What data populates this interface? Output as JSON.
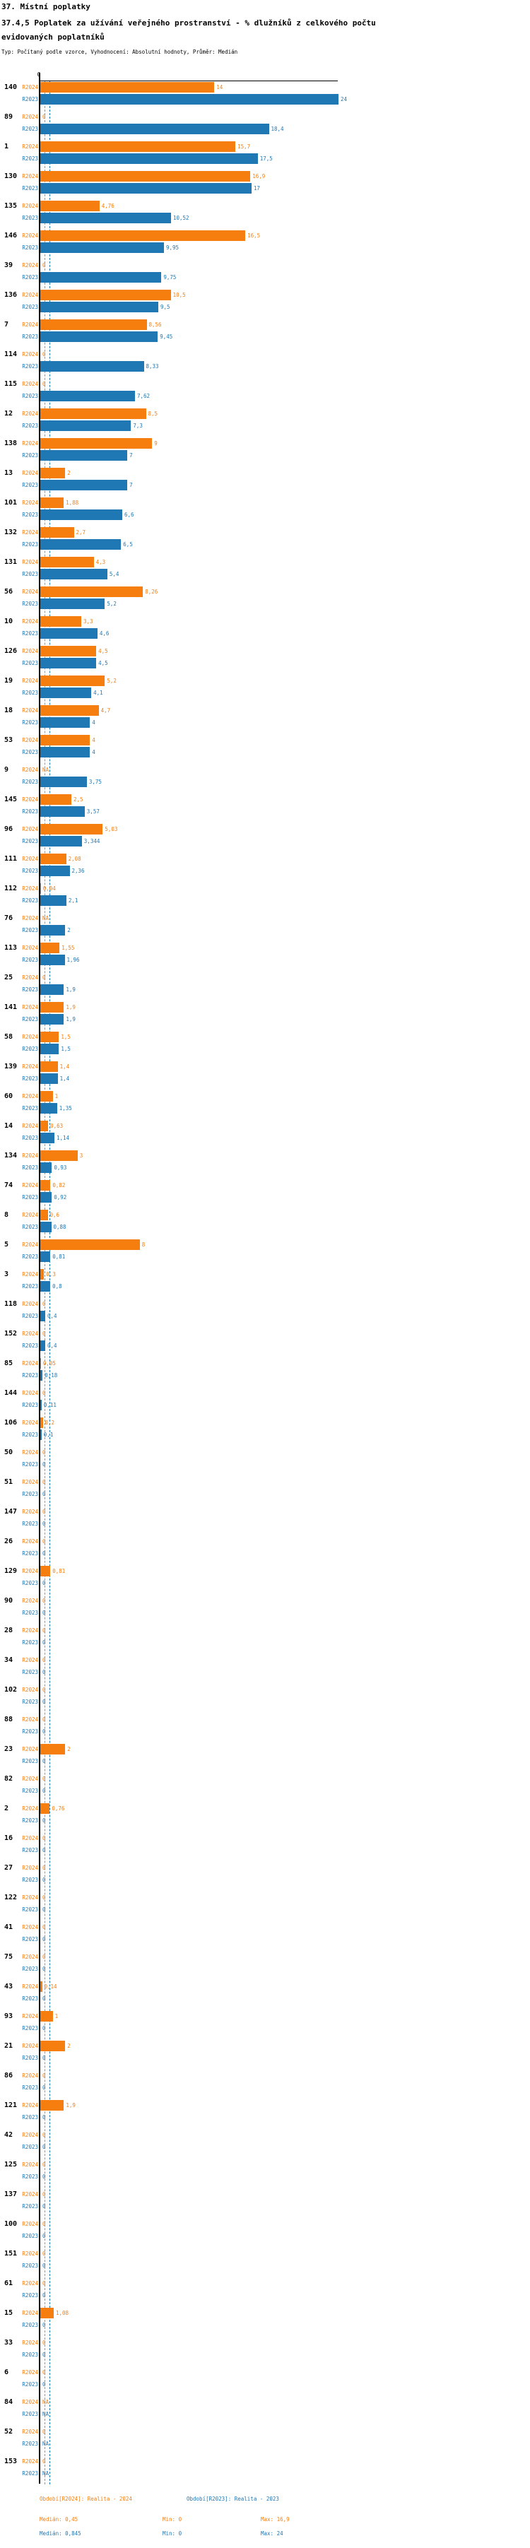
{
  "header": {
    "title": "37. Místní poplatky",
    "subtitle": "37.4,5 Poplatek za užívání veřejného prostranství - % dlužníků z celkového počtu evidovaných poplatníků",
    "meta": "Typ: Počítaný podle vzorce, Vyhodnocení: Absolutní hodnoty, Průměr: Medián"
  },
  "chart_data": {
    "type": "bar",
    "orientation": "horizontal",
    "title": "37.4,5 Poplatek za užívání veřejného prostranství - % dlužníků z celkového počtu evidovaných poplatníků",
    "xlabel": "",
    "ylabel": "",
    "unit": "%",
    "axis": {
      "zero_label": "0",
      "min": 0,
      "max": 24,
      "grid": false
    },
    "legend_position": "bottom",
    "series": [
      {
        "key": "r2024",
        "name": "R2024",
        "label": "Období[R2024]: Realita - 2024",
        "color": "#f57e0e",
        "median": 0.45,
        "min": 0,
        "max": 16.9
      },
      {
        "key": "r2023",
        "name": "R2023",
        "label": "Období[R2023]: Realita - 2023",
        "color": "#1f77b4",
        "median": 0.845,
        "min": 0,
        "max": 24
      }
    ],
    "groups": [
      {
        "id": "140",
        "r2024": "14",
        "r2023": "24"
      },
      {
        "id": "89",
        "r2024": "0",
        "r2023": "18,4"
      },
      {
        "id": "1",
        "r2024": "15,7",
        "r2023": "17,5"
      },
      {
        "id": "130",
        "r2024": "16,9",
        "r2023": "17"
      },
      {
        "id": "135",
        "r2024": "4,76",
        "r2023": "10,52"
      },
      {
        "id": "146",
        "r2024": "16,5",
        "r2023": "9,95"
      },
      {
        "id": "39",
        "r2024": "0",
        "r2023": "9,75"
      },
      {
        "id": "136",
        "r2024": "10,5",
        "r2023": "9,5"
      },
      {
        "id": "7",
        "r2024": "8,56",
        "r2023": "9,45"
      },
      {
        "id": "114",
        "r2024": "0",
        "r2023": "8,33"
      },
      {
        "id": "115",
        "r2024": "0",
        "r2023": "7,62"
      },
      {
        "id": "12",
        "r2024": "8,5",
        "r2023": "7,3"
      },
      {
        "id": "138",
        "r2024": "9",
        "r2023": "7"
      },
      {
        "id": "13",
        "r2024": "2",
        "r2023": "7"
      },
      {
        "id": "101",
        "r2024": "1,88",
        "r2023": "6,6"
      },
      {
        "id": "132",
        "r2024": "2,7",
        "r2023": "6,5"
      },
      {
        "id": "131",
        "r2024": "4,3",
        "r2023": "5,4"
      },
      {
        "id": "56",
        "r2024": "8,26",
        "r2023": "5,2"
      },
      {
        "id": "10",
        "r2024": "3,3",
        "r2023": "4,6"
      },
      {
        "id": "126",
        "r2024": "4,5",
        "r2023": "4,5"
      },
      {
        "id": "19",
        "r2024": "5,2",
        "r2023": "4,1"
      },
      {
        "id": "18",
        "r2024": "4,7",
        "r2023": "4"
      },
      {
        "id": "53",
        "r2024": "4",
        "r2023": "4"
      },
      {
        "id": "9",
        "r2024": "NA",
        "r2023": "3,75"
      },
      {
        "id": "145",
        "r2024": "2,5",
        "r2023": "3,57"
      },
      {
        "id": "96",
        "r2024": "5,03",
        "r2023": "3,344"
      },
      {
        "id": "111",
        "r2024": "2,08",
        "r2023": "2,36"
      },
      {
        "id": "112",
        "r2024": "0,04",
        "r2023": "2,1"
      },
      {
        "id": "76",
        "r2024": "NA",
        "r2023": "2"
      },
      {
        "id": "113",
        "r2024": "1,55",
        "r2023": "1,96"
      },
      {
        "id": "25",
        "r2024": "0",
        "r2023": "1,9"
      },
      {
        "id": "141",
        "r2024": "1,9",
        "r2023": "1,9"
      },
      {
        "id": "58",
        "r2024": "1,5",
        "r2023": "1,5"
      },
      {
        "id": "139",
        "r2024": "1,4",
        "r2023": "1,4"
      },
      {
        "id": "60",
        "r2024": "1",
        "r2023": "1,35"
      },
      {
        "id": "14",
        "r2024": "0,63",
        "r2023": "1,14"
      },
      {
        "id": "134",
        "r2024": "3",
        "r2023": "0,93"
      },
      {
        "id": "74",
        "r2024": "0,82",
        "r2023": "0,92"
      },
      {
        "id": "8",
        "r2024": "0,6",
        "r2023": "0,88"
      },
      {
        "id": "5",
        "r2024": "8",
        "r2023": "0,81"
      },
      {
        "id": "3",
        "r2024": "0,3",
        "r2023": "0,8"
      },
      {
        "id": "118",
        "r2024": "0",
        "r2023": "0,4"
      },
      {
        "id": "152",
        "r2024": "0",
        "r2023": "0,4"
      },
      {
        "id": "85",
        "r2024": "0,05",
        "r2023": "0,18"
      },
      {
        "id": "144",
        "r2024": "0",
        "r2023": "0,11"
      },
      {
        "id": "106",
        "r2024": "0,2",
        "r2023": "0,1"
      },
      {
        "id": "50",
        "r2024": "0",
        "r2023": "0"
      },
      {
        "id": "51",
        "r2024": "0",
        "r2023": "0"
      },
      {
        "id": "147",
        "r2024": "0",
        "r2023": "0"
      },
      {
        "id": "26",
        "r2024": "0",
        "r2023": "0"
      },
      {
        "id": "129",
        "r2024": "0,81",
        "r2023": "0"
      },
      {
        "id": "90",
        "r2024": "0",
        "r2023": "0"
      },
      {
        "id": "28",
        "r2024": "0",
        "r2023": "0"
      },
      {
        "id": "34",
        "r2024": "0",
        "r2023": "0"
      },
      {
        "id": "102",
        "r2024": "0",
        "r2023": "0"
      },
      {
        "id": "88",
        "r2024": "0",
        "r2023": "0"
      },
      {
        "id": "23",
        "r2024": "2",
        "r2023": "0"
      },
      {
        "id": "82",
        "r2024": "0",
        "r2023": "0"
      },
      {
        "id": "2",
        "r2024": "0,76",
        "r2023": "0"
      },
      {
        "id": "16",
        "r2024": "0",
        "r2023": "0"
      },
      {
        "id": "27",
        "r2024": "0",
        "r2023": "0"
      },
      {
        "id": "122",
        "r2024": "0",
        "r2023": "0"
      },
      {
        "id": "41",
        "r2024": "0",
        "r2023": "0"
      },
      {
        "id": "75",
        "r2024": "0",
        "r2023": "0"
      },
      {
        "id": "43",
        "r2024": "0,14",
        "r2023": "0"
      },
      {
        "id": "93",
        "r2024": "1",
        "r2023": "0"
      },
      {
        "id": "21",
        "r2024": "2",
        "r2023": "0"
      },
      {
        "id": "86",
        "r2024": "0",
        "r2023": "0"
      },
      {
        "id": "121",
        "r2024": "1,9",
        "r2023": "0"
      },
      {
        "id": "42",
        "r2024": "0",
        "r2023": "0"
      },
      {
        "id": "125",
        "r2024": "0",
        "r2023": "0"
      },
      {
        "id": "137",
        "r2024": "0",
        "r2023": "0"
      },
      {
        "id": "100",
        "r2024": "0",
        "r2023": "0"
      },
      {
        "id": "151",
        "r2024": "0",
        "r2023": "0"
      },
      {
        "id": "61",
        "r2024": "0",
        "r2023": "0"
      },
      {
        "id": "15",
        "r2024": "1,08",
        "r2023": "0"
      },
      {
        "id": "33",
        "r2024": "0",
        "r2023": "0"
      },
      {
        "id": "6",
        "r2024": "0",
        "r2023": "0"
      },
      {
        "id": "84",
        "r2024": "NA",
        "r2023": "NA"
      },
      {
        "id": "52",
        "r2024": "0",
        "r2023": "NA"
      },
      {
        "id": "153",
        "r2024": "0",
        "r2023": "NA"
      }
    ]
  },
  "footer": {
    "legend_r2024": "Období[R2024]: Realita - 2024",
    "legend_r2023": "Období[R2023]: Realita - 2023",
    "median_r2024": "Medián: 0,45",
    "min_r2024": "Min: 0",
    "max_r2024": "Max: 16,9",
    "median_r2023": "Medián: 0,845",
    "min_r2023": "Min: 0",
    "max_r2023": "Max: 24"
  }
}
